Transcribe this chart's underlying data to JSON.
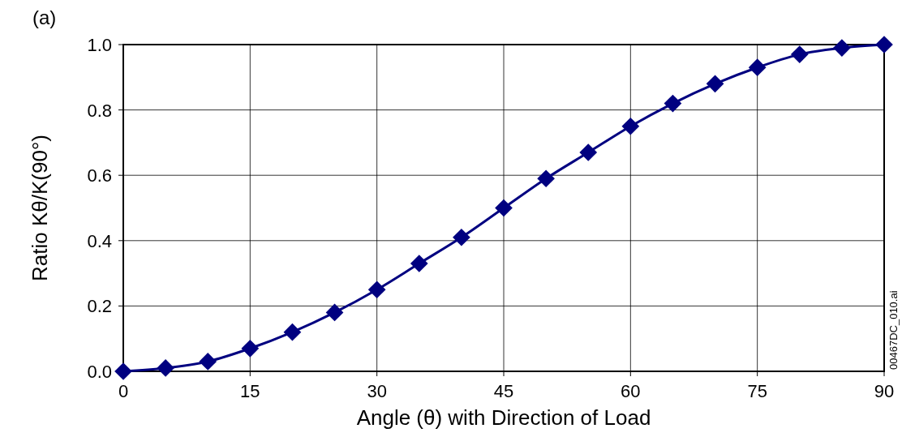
{
  "chart_data": {
    "type": "line",
    "xlabel": "Angle (θ) with Direction of Load",
    "ylabel": "Ratio Kθ/K(90°)",
    "annotations": [
      "(a)",
      "00467DC_010.ai"
    ],
    "x": [
      0,
      5,
      10,
      15,
      20,
      25,
      30,
      35,
      40,
      45,
      50,
      55,
      60,
      65,
      70,
      75,
      80,
      85,
      90
    ],
    "series": [
      {
        "color": "#000080",
        "values": [
          0,
          0.01,
          0.03,
          0.07,
          0.12,
          0.18,
          0.25,
          0.33,
          0.41,
          0.5,
          0.59,
          0.67,
          0.75,
          0.82,
          0.88,
          0.93,
          0.97,
          0.99,
          1.0
        ]
      }
    ],
    "xlim": [
      0,
      90
    ],
    "xticks": [
      0,
      15,
      30,
      45,
      60,
      75,
      90
    ],
    "ylim": [
      0,
      1
    ],
    "yticks": [
      {
        "value": 0,
        "label": "0.0"
      },
      {
        "value": 0.2,
        "label": "0.2"
      },
      {
        "value": 0.4,
        "label": "0.4"
      },
      {
        "value": 0.6,
        "label": "0.6"
      },
      {
        "value": 0.8,
        "label": "0.8"
      },
      {
        "value": 1,
        "label": "1.0"
      }
    ],
    "grid": true,
    "marker": "diamond",
    "line_style": "solid"
  }
}
